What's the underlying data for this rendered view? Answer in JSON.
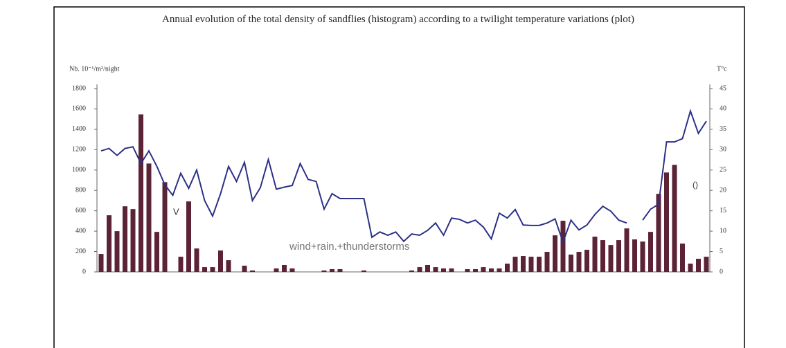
{
  "chart_data": {
    "type": "bar_line",
    "title": "Annual evolution of the total density of sandflies (histogram) according to a twilight temperature variations (plot)",
    "y_label": "Nb. 10⁻¹/m²/night",
    "y2_label": "T°c",
    "annotations": [
      "wind+rain.+thunderstorms",
      "V",
      "()"
    ],
    "categories": [
      null,
      null,
      null,
      null,
      null,
      null,
      null,
      null,
      null,
      null,
      null,
      null,
      null,
      null,
      null,
      null,
      null,
      null,
      null,
      null,
      null,
      null,
      null,
      null,
      null,
      null,
      null,
      null,
      null,
      null,
      null,
      null,
      null,
      null,
      null,
      null,
      null,
      null,
      null,
      null,
      null,
      null,
      null,
      null,
      null,
      null,
      null,
      null,
      null,
      null,
      null,
      null,
      null,
      null,
      null,
      null,
      null,
      null,
      null,
      null,
      null,
      null,
      null,
      null,
      null,
      null,
      null,
      null,
      null,
      null,
      null,
      null,
      null,
      null,
      null,
      null,
      null
    ],
    "ylim": [
      0,
      1800
    ],
    "yticks": [
      0,
      200,
      400,
      600,
      800,
      1000,
      1200,
      1400,
      1600,
      1800
    ],
    "y2lim": [
      0,
      45
    ],
    "y2ticks": [
      0,
      5,
      10,
      15,
      20,
      25,
      30,
      35,
      40,
      45
    ],
    "series": [
      {
        "type": "bar",
        "color": "#5b2335",
        "values": [
          176,
          556,
          400,
          644,
          617,
          1546,
          1064,
          393,
          881,
          0,
          149,
          692,
          230,
          47,
          47,
          210,
          115,
          0,
          61,
          14,
          0,
          0,
          34,
          68,
          34,
          0,
          0,
          0,
          14,
          27,
          27,
          0,
          0,
          14,
          0,
          0,
          0,
          0,
          0,
          14,
          47,
          68,
          47,
          34,
          34,
          0,
          27,
          27,
          47,
          34,
          34,
          81,
          149,
          156,
          149,
          149,
          197,
          359,
          502,
          170,
          197,
          217,
          346,
          312,
          264,
          312,
          427,
          319,
          298,
          393,
          766,
          976,
          1051,
          278,
          81,
          129,
          149
        ]
      },
      {
        "type": "line",
        "axis": "y2",
        "color": "#2b3088",
        "values": [
          29.7,
          30.3,
          28.6,
          30.3,
          30.7,
          26.6,
          29.7,
          25.9,
          21.4,
          18.8,
          24.2,
          20.5,
          25,
          17.5,
          13.7,
          19.2,
          25.9,
          22.2,
          26.9,
          17.5,
          20.7,
          27.6,
          20.3,
          20.8,
          21.2,
          26.6,
          22.7,
          22.2,
          15.4,
          19.2,
          18,
          18,
          18,
          18,
          8.5,
          9.8,
          9,
          9.8,
          7.5,
          9.3,
          9,
          10.2,
          12,
          9,
          13.2,
          12.9,
          12,
          12.7,
          11,
          8.1,
          14.4,
          13.2,
          15.3,
          11.5,
          11.4,
          11.4,
          12,
          13,
          7.3,
          12.7,
          10.3,
          11.5,
          14.1,
          16.1,
          14.9,
          12.7,
          12,
          null,
          12.7,
          15.4,
          16.6,
          31.9,
          31.9,
          32.7,
          39.5,
          34,
          37
        ]
      }
    ]
  }
}
